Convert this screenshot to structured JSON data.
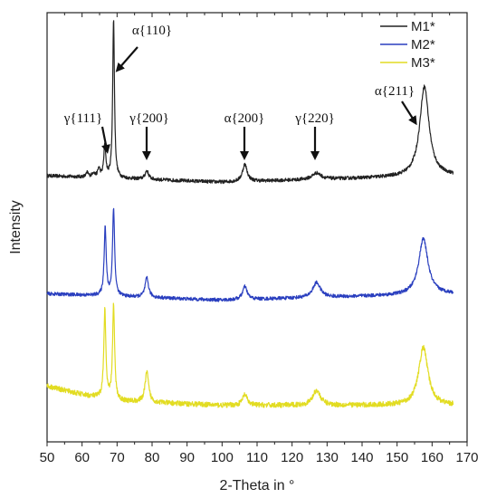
{
  "chart_data": {
    "type": "line",
    "xlabel": "2-Theta in °",
    "ylabel": "Intensity",
    "xlim": [
      50,
      170
    ],
    "xticks": [
      50,
      60,
      70,
      80,
      90,
      100,
      110,
      120,
      130,
      140,
      150,
      160,
      170
    ],
    "grid": false,
    "legend_position": "top-right",
    "x_start": 50,
    "x_end": 166,
    "series": [
      {
        "name": "M1*",
        "color": "#222222",
        "baseline": 0.62,
        "drift": [
          [
            50,
            0.0
          ],
          [
            100,
            -0.015
          ],
          [
            166,
            0.0
          ]
        ],
        "noise": 0.004,
        "peaks": [
          {
            "x": 61.5,
            "h": 0.01,
            "w": 0.4
          },
          {
            "x": 63.2,
            "h": 0.01,
            "w": 0.4
          },
          {
            "x": 64.8,
            "h": 0.02,
            "w": 0.4
          },
          {
            "x": 66.5,
            "h": 0.075,
            "w": 0.35
          },
          {
            "x": 69.0,
            "h": 0.37,
            "w": 0.3
          },
          {
            "x": 78.5,
            "h": 0.02,
            "w": 0.6
          },
          {
            "x": 106.5,
            "h": 0.04,
            "w": 0.8
          },
          {
            "x": 127.0,
            "h": 0.015,
            "w": 1.5
          },
          {
            "x": 157.8,
            "h": 0.21,
            "w": 1.6
          }
        ]
      },
      {
        "name": "M2*",
        "color": "#2a3fbf",
        "baseline": 0.345,
        "drift": [
          [
            50,
            0.0
          ],
          [
            100,
            -0.015
          ],
          [
            166,
            0.0
          ]
        ],
        "noise": 0.004,
        "peaks": [
          {
            "x": 66.6,
            "h": 0.16,
            "w": 0.35
          },
          {
            "x": 69.0,
            "h": 0.205,
            "w": 0.35
          },
          {
            "x": 78.5,
            "h": 0.045,
            "w": 0.6
          },
          {
            "x": 106.5,
            "h": 0.03,
            "w": 0.8
          },
          {
            "x": 127.0,
            "h": 0.035,
            "w": 1.3
          },
          {
            "x": 157.5,
            "h": 0.13,
            "w": 1.6
          }
        ]
      },
      {
        "name": "M3*",
        "color": "#e2dc22",
        "baseline": 0.085,
        "drift": [
          [
            50,
            0.045
          ],
          [
            60,
            0.025
          ],
          [
            70,
            0.01
          ],
          [
            100,
            0.0
          ],
          [
            166,
            0.0
          ]
        ],
        "noise": 0.006,
        "peaks": [
          {
            "x": 66.5,
            "h": 0.205,
            "w": 0.35
          },
          {
            "x": 69.0,
            "h": 0.22,
            "w": 0.35
          },
          {
            "x": 78.5,
            "h": 0.07,
            "w": 0.6
          },
          {
            "x": 106.5,
            "h": 0.025,
            "w": 0.8
          },
          {
            "x": 127.0,
            "h": 0.035,
            "w": 1.3
          },
          {
            "x": 157.5,
            "h": 0.135,
            "w": 1.6
          }
        ]
      }
    ],
    "annotations": [
      {
        "text": "α{110}",
        "target_x": 70.5
      },
      {
        "text": "γ{111}",
        "target_x": 66.5
      },
      {
        "text": "γ{200}",
        "target_x": 78.5
      },
      {
        "text": "α{200}",
        "target_x": 106.5
      },
      {
        "text": "γ{220}",
        "target_x": 127.0
      },
      {
        "text": "α{211}",
        "target_x": 157.5
      }
    ]
  }
}
